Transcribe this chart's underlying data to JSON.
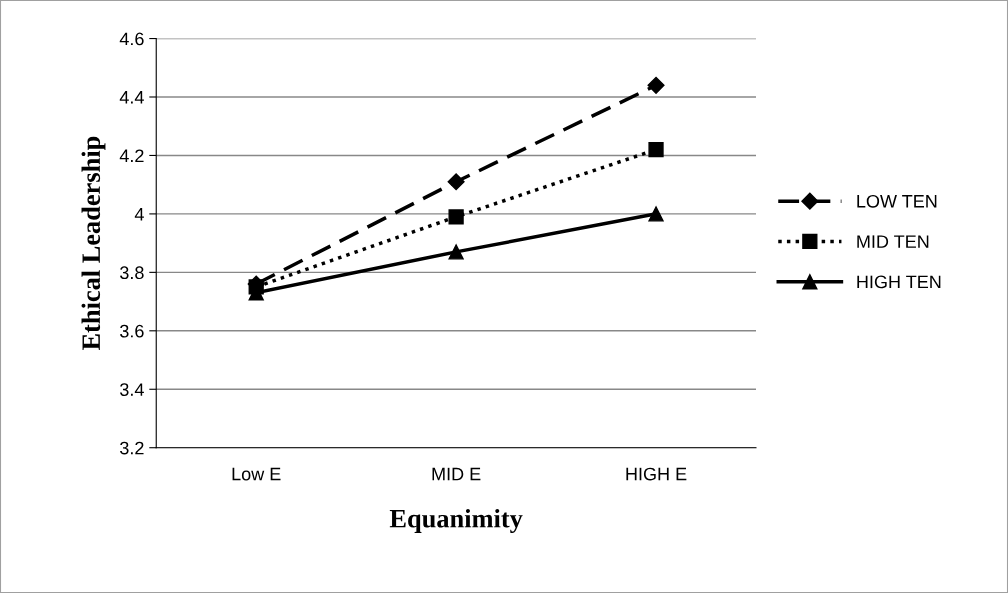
{
  "chart_data": {
    "type": "line",
    "xlabel": "Equanimity",
    "ylabel": "Ethical Leadership",
    "categories": [
      "Low E",
      "MID E",
      "HIGH E"
    ],
    "series": [
      {
        "name": "LOW TEN",
        "color": "#000000",
        "values": [
          3.76,
          4.11,
          4.44
        ],
        "marker": "diamond",
        "line_style": "dashed"
      },
      {
        "name": "MID TEN",
        "color": "#000000",
        "values": [
          3.75,
          3.99,
          4.22
        ],
        "marker": "square",
        "line_style": "dotted"
      },
      {
        "name": "HIGH TEN",
        "color": "#000000",
        "values": [
          3.73,
          3.87,
          4.0
        ],
        "marker": "triangle",
        "line_style": "solid"
      }
    ],
    "ylim": [
      3.2,
      4.6
    ],
    "yticks": [
      3.2,
      3.4,
      3.6,
      3.8,
      4,
      4.2,
      4.4,
      4.6
    ],
    "grid": "y",
    "legend": "right"
  }
}
